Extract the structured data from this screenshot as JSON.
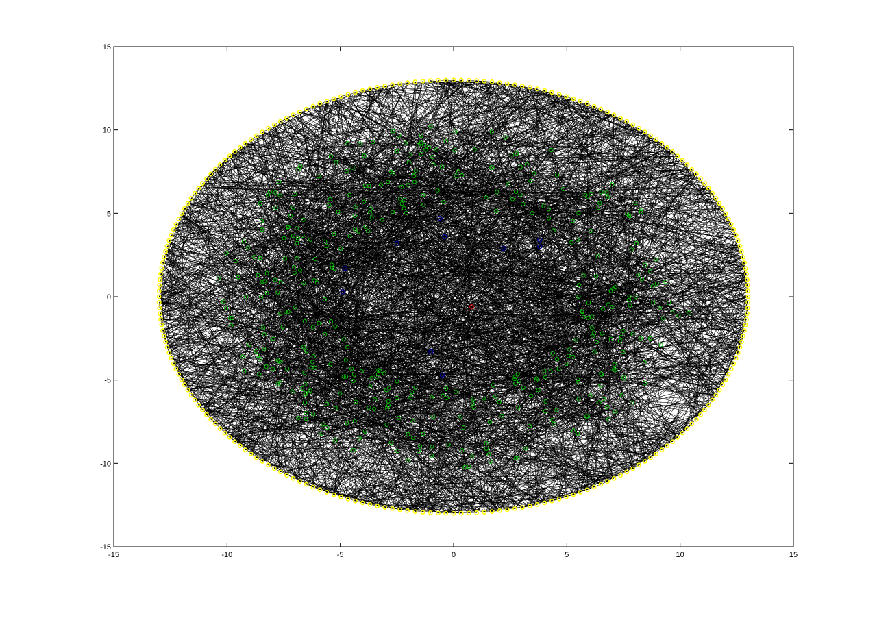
{
  "chart_data": {
    "type": "scatter",
    "title": "",
    "xlabel": "",
    "ylabel": "",
    "xlim": [
      -15,
      15
    ],
    "ylim": [
      -15,
      15
    ],
    "grid": false,
    "x_ticks": [
      -15,
      -10,
      -5,
      0,
      5,
      10,
      15
    ],
    "y_ticks": [
      -15,
      -10,
      -5,
      0,
      5,
      10,
      15
    ],
    "x_tick_labels": [
      "-15",
      "-10",
      "-5",
      "0",
      "5",
      "10",
      "15"
    ],
    "y_tick_labels": [
      "-15",
      "-10",
      "-5",
      "0",
      "5",
      "10",
      "15"
    ],
    "series": [
      {
        "marker": "circle",
        "color": "#ffff00",
        "layer": "outer ring",
        "rx": 13,
        "ry": 13,
        "count": 240
      },
      {
        "marker": "circle",
        "color": "#00cc00",
        "layer": "middle band",
        "r_min": 5.5,
        "r_max": 10.5,
        "count": 420
      },
      {
        "marker": "circle",
        "color": "#00008b",
        "layer": "inner nodes",
        "points": [
          [
            -0.6,
            4.7
          ],
          [
            -0.4,
            3.6
          ],
          [
            -2.5,
            3.2
          ],
          [
            2.2,
            2.9
          ],
          [
            3.8,
            3.4
          ],
          [
            3.8,
            3.0
          ],
          [
            -4.8,
            1.7
          ],
          [
            -4.9,
            0.3
          ],
          [
            -1.0,
            -3.3
          ],
          [
            -0.5,
            -4.7
          ]
        ]
      },
      {
        "marker": "circle",
        "color": "#cc0000",
        "layer": "center",
        "points": [
          [
            0.8,
            -0.6
          ]
        ]
      }
    ],
    "edges": {
      "color": "#000000",
      "count": 2600,
      "description_free": true
    }
  }
}
